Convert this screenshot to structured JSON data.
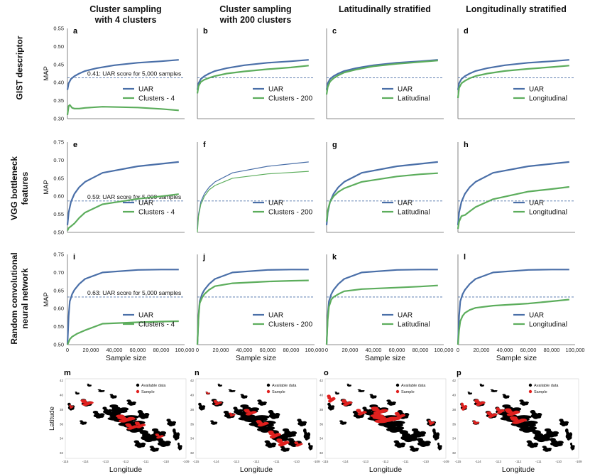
{
  "columns": [
    "Cluster sampling\nwith 4 clusters",
    "Cluster sampling\nwith 200 clusters",
    "Latitudinally stratified",
    "Longitudinally stratified"
  ],
  "rows": [
    "GIST descriptor",
    "VGG bottleneck\nfeatures",
    "Random convolutional\nneural network"
  ],
  "colors": {
    "uar": "#4a6fa8",
    "other": "#5cad5c",
    "baseline": "#4a6fa8",
    "available": "#000000",
    "sample": "#e0201e"
  },
  "y_axis_label": "MAP",
  "x_axis_label": "Sample size",
  "x_ticks": [
    "0",
    "20,000",
    "40,000",
    "60,000",
    "80,000",
    "100,000"
  ],
  "map": {
    "y_axis_label": "Latitude",
    "x_axis_label": "Longitude",
    "legend_available": "Available data",
    "legend_sample": "Sample",
    "lat_ticks": [
      "32",
      "34",
      "36",
      "38",
      "40",
      "42"
    ],
    "lon_ticks": [
      "-115",
      "-114",
      "-113",
      "-112",
      "-111",
      "-110",
      "-109"
    ],
    "panels": [
      "m",
      "n",
      "o",
      "p"
    ]
  },
  "chart_data": [
    {
      "type": "line",
      "panel": "a",
      "row": 0,
      "col": 0,
      "ylim": [
        0.3,
        0.55
      ],
      "yticks": [
        "0.30",
        "0.35",
        "0.40",
        "0.45",
        "0.50",
        "0.55"
      ],
      "baseline": 0.413,
      "annotation": "0.41: UAR score for 5,000 samples",
      "series": [
        {
          "name": "UAR",
          "x": [
            0,
            1000,
            3000,
            6000,
            10000,
            15000,
            25000,
            40000,
            60000,
            80000,
            95000
          ],
          "y": [
            0.38,
            0.398,
            0.41,
            0.418,
            0.425,
            0.432,
            0.44,
            0.448,
            0.455,
            0.459,
            0.463
          ]
        },
        {
          "name": "Clusters - 4",
          "x": [
            0,
            1000,
            2000,
            4000,
            6000,
            10000,
            15000,
            30000,
            60000,
            80000,
            95000
          ],
          "y": [
            0.31,
            0.335,
            0.338,
            0.33,
            0.328,
            0.328,
            0.33,
            0.333,
            0.331,
            0.327,
            0.323
          ]
        }
      ]
    },
    {
      "type": "line",
      "panel": "b",
      "row": 0,
      "col": 1,
      "ylim": [
        0.3,
        0.55
      ],
      "yticks": [
        "0.30",
        "0.35",
        "0.40",
        "0.45",
        "0.50",
        "0.55"
      ],
      "baseline": 0.413,
      "series": [
        {
          "name": "UAR",
          "x": [
            0,
            1000,
            3000,
            6000,
            10000,
            15000,
            25000,
            40000,
            60000,
            80000,
            95000
          ],
          "y": [
            0.38,
            0.398,
            0.41,
            0.418,
            0.425,
            0.432,
            0.44,
            0.448,
            0.455,
            0.459,
            0.463
          ]
        },
        {
          "name": "Clusters - 200",
          "x": [
            0,
            1000,
            3000,
            6000,
            10000,
            15000,
            25000,
            40000,
            60000,
            80000,
            95000
          ],
          "y": [
            0.37,
            0.39,
            0.402,
            0.408,
            0.413,
            0.418,
            0.425,
            0.431,
            0.437,
            0.442,
            0.447
          ]
        }
      ]
    },
    {
      "type": "line",
      "panel": "c",
      "row": 0,
      "col": 2,
      "ylim": [
        0.3,
        0.55
      ],
      "yticks": [
        "0.30",
        "0.35",
        "0.40",
        "0.45",
        "0.50",
        "0.55"
      ],
      "baseline": 0.413,
      "series": [
        {
          "name": "UAR",
          "x": [
            0,
            1000,
            3000,
            6000,
            10000,
            15000,
            25000,
            40000,
            60000,
            80000,
            95000
          ],
          "y": [
            0.38,
            0.398,
            0.41,
            0.418,
            0.425,
            0.432,
            0.44,
            0.448,
            0.455,
            0.459,
            0.463
          ]
        },
        {
          "name": "Latitudinal",
          "x": [
            0,
            1000,
            3000,
            6000,
            10000,
            15000,
            25000,
            40000,
            60000,
            80000,
            95000
          ],
          "y": [
            0.367,
            0.388,
            0.403,
            0.412,
            0.42,
            0.428,
            0.436,
            0.445,
            0.452,
            0.457,
            0.461
          ]
        }
      ]
    },
    {
      "type": "line",
      "panel": "d",
      "row": 0,
      "col": 3,
      "ylim": [
        0.3,
        0.55
      ],
      "yticks": [
        "0.30",
        "0.35",
        "0.40",
        "0.45",
        "0.50",
        "0.55"
      ],
      "baseline": 0.413,
      "series": [
        {
          "name": "UAR",
          "x": [
            0,
            1000,
            3000,
            6000,
            10000,
            15000,
            25000,
            40000,
            60000,
            80000,
            95000
          ],
          "y": [
            0.38,
            0.398,
            0.41,
            0.418,
            0.425,
            0.432,
            0.44,
            0.448,
            0.455,
            0.459,
            0.463
          ]
        },
        {
          "name": "Longitudinal",
          "x": [
            0,
            1000,
            3000,
            6000,
            10000,
            15000,
            25000,
            40000,
            60000,
            80000,
            95000
          ],
          "y": [
            0.357,
            0.385,
            0.398,
            0.405,
            0.412,
            0.418,
            0.425,
            0.432,
            0.438,
            0.443,
            0.447
          ]
        }
      ]
    },
    {
      "type": "line",
      "panel": "e",
      "row": 1,
      "col": 0,
      "ylim": [
        0.5,
        0.75
      ],
      "yticks": [
        "0.50",
        "0.55",
        "0.60",
        "0.65",
        "0.70",
        "0.75"
      ],
      "baseline": 0.587,
      "annotation": "0.59: UAR score for 5,000 samples",
      "series": [
        {
          "name": "UAR",
          "x": [
            0,
            1000,
            3000,
            6000,
            10000,
            15000,
            30000,
            60000,
            80000,
            95000
          ],
          "y": [
            0.52,
            0.555,
            0.585,
            0.607,
            0.625,
            0.64,
            0.665,
            0.683,
            0.69,
            0.695
          ]
        },
        {
          "name": "Clusters - 4",
          "x": [
            0,
            1000,
            3000,
            6000,
            10000,
            15000,
            30000,
            60000,
            80000,
            95000
          ],
          "y": [
            0.505,
            0.512,
            0.517,
            0.525,
            0.54,
            0.555,
            0.578,
            0.593,
            0.6,
            0.606
          ]
        }
      ]
    },
    {
      "type": "line",
      "panel": "f",
      "row": 1,
      "col": 1,
      "ylim": [
        0.5,
        0.75
      ],
      "yticks": [
        "0.50",
        "0.55",
        "0.60",
        "0.65",
        "0.70",
        "0.75"
      ],
      "baseline": 0.587,
      "thin": true,
      "series": [
        {
          "name": "UAR",
          "x": [
            0,
            1000,
            3000,
            6000,
            10000,
            15000,
            30000,
            60000,
            80000,
            95000
          ],
          "y": [
            0.51,
            0.55,
            0.585,
            0.607,
            0.625,
            0.64,
            0.665,
            0.683,
            0.69,
            0.695
          ]
        },
        {
          "name": "Clusters - 200",
          "x": [
            0,
            1000,
            3000,
            6000,
            10000,
            15000,
            30000,
            60000,
            80000,
            95000
          ],
          "y": [
            0.5,
            0.545,
            0.578,
            0.6,
            0.618,
            0.63,
            0.65,
            0.662,
            0.666,
            0.669
          ]
        }
      ]
    },
    {
      "type": "line",
      "panel": "g",
      "row": 1,
      "col": 2,
      "ylim": [
        0.5,
        0.75
      ],
      "yticks": [
        "0.50",
        "0.55",
        "0.60",
        "0.65",
        "0.70",
        "0.75"
      ],
      "baseline": 0.587,
      "series": [
        {
          "name": "UAR",
          "x": [
            0,
            1000,
            3000,
            6000,
            10000,
            15000,
            30000,
            60000,
            80000,
            95000
          ],
          "y": [
            0.52,
            0.555,
            0.585,
            0.607,
            0.625,
            0.64,
            0.665,
            0.683,
            0.69,
            0.695
          ]
        },
        {
          "name": "Latitudinal",
          "x": [
            0,
            1000,
            3000,
            6000,
            10000,
            15000,
            30000,
            60000,
            80000,
            95000
          ],
          "y": [
            0.53,
            0.56,
            0.585,
            0.6,
            0.612,
            0.622,
            0.64,
            0.655,
            0.661,
            0.664
          ]
        }
      ]
    },
    {
      "type": "line",
      "panel": "h",
      "row": 1,
      "col": 3,
      "ylim": [
        0.5,
        0.75
      ],
      "yticks": [
        "0.50",
        "0.55",
        "0.60",
        "0.65",
        "0.70",
        "0.75"
      ],
      "baseline": 0.587,
      "series": [
        {
          "name": "UAR",
          "x": [
            0,
            1000,
            3000,
            6000,
            10000,
            15000,
            30000,
            60000,
            80000,
            95000
          ],
          "y": [
            0.52,
            0.555,
            0.585,
            0.607,
            0.625,
            0.64,
            0.665,
            0.683,
            0.69,
            0.695
          ]
        },
        {
          "name": "Longitudinal",
          "x": [
            0,
            1000,
            3000,
            6000,
            10000,
            15000,
            30000,
            60000,
            80000,
            95000
          ],
          "y": [
            0.51,
            0.53,
            0.545,
            0.548,
            0.558,
            0.57,
            0.592,
            0.613,
            0.62,
            0.626
          ]
        }
      ]
    },
    {
      "type": "line",
      "panel": "i",
      "row": 2,
      "col": 0,
      "ylim": [
        0.5,
        0.75
      ],
      "yticks": [
        "0.50",
        "0.55",
        "0.60",
        "0.65",
        "0.70",
        "0.75"
      ],
      "baseline": 0.632,
      "annotation": "0.63: UAR score for 5,000 samples",
      "series": [
        {
          "name": "UAR",
          "x": [
            0,
            1000,
            2000,
            4000,
            6000,
            10000,
            15000,
            30000,
            60000,
            80000,
            95000
          ],
          "y": [
            0.5,
            0.58,
            0.62,
            0.64,
            0.652,
            0.668,
            0.682,
            0.7,
            0.707,
            0.708,
            0.708
          ]
        },
        {
          "name": "Clusters - 4",
          "x": [
            0,
            2000,
            4000,
            8000,
            15000,
            30000,
            60000,
            80000,
            95000
          ],
          "y": [
            0.5,
            0.515,
            0.522,
            0.53,
            0.54,
            0.558,
            0.562,
            0.564,
            0.565
          ]
        }
      ]
    },
    {
      "type": "line",
      "panel": "j",
      "row": 2,
      "col": 1,
      "ylim": [
        0.5,
        0.75
      ],
      "yticks": [
        "0.50",
        "0.55",
        "0.60",
        "0.65",
        "0.70",
        "0.75"
      ],
      "baseline": 0.632,
      "series": [
        {
          "name": "UAR",
          "x": [
            0,
            1000,
            2000,
            4000,
            6000,
            10000,
            15000,
            30000,
            60000,
            80000,
            95000
          ],
          "y": [
            0.5,
            0.58,
            0.62,
            0.64,
            0.652,
            0.668,
            0.682,
            0.7,
            0.707,
            0.708,
            0.708
          ]
        },
        {
          "name": "Clusters - 200",
          "x": [
            0,
            1000,
            2000,
            4000,
            6000,
            10000,
            15000,
            30000,
            60000,
            80000,
            95000
          ],
          "y": [
            0.5,
            0.575,
            0.615,
            0.63,
            0.64,
            0.652,
            0.662,
            0.67,
            0.675,
            0.677,
            0.678
          ]
        }
      ]
    },
    {
      "type": "line",
      "panel": "k",
      "row": 2,
      "col": 2,
      "ylim": [
        0.5,
        0.75
      ],
      "yticks": [
        "0.50",
        "0.55",
        "0.60",
        "0.65",
        "0.70",
        "0.75"
      ],
      "baseline": 0.632,
      "series": [
        {
          "name": "UAR",
          "x": [
            0,
            1000,
            2000,
            4000,
            6000,
            10000,
            15000,
            30000,
            60000,
            80000,
            95000
          ],
          "y": [
            0.5,
            0.58,
            0.62,
            0.64,
            0.652,
            0.668,
            0.682,
            0.7,
            0.707,
            0.708,
            0.708
          ]
        },
        {
          "name": "Latitudinal",
          "x": [
            0,
            1000,
            2000,
            4000,
            6000,
            10000,
            15000,
            30000,
            60000,
            80000,
            95000
          ],
          "y": [
            0.5,
            0.57,
            0.605,
            0.625,
            0.632,
            0.64,
            0.648,
            0.654,
            0.658,
            0.661,
            0.664
          ]
        }
      ]
    },
    {
      "type": "line",
      "panel": "l",
      "row": 2,
      "col": 3,
      "ylim": [
        0.5,
        0.75
      ],
      "yticks": [
        "0.50",
        "0.55",
        "0.60",
        "0.65",
        "0.70",
        "0.75"
      ],
      "baseline": 0.632,
      "series": [
        {
          "name": "UAR",
          "x": [
            0,
            1000,
            2000,
            4000,
            6000,
            10000,
            15000,
            30000,
            60000,
            80000,
            95000
          ],
          "y": [
            0.5,
            0.58,
            0.62,
            0.64,
            0.652,
            0.668,
            0.682,
            0.7,
            0.707,
            0.708,
            0.708
          ]
        },
        {
          "name": "Longitudinal",
          "x": [
            0,
            1000,
            2000,
            4000,
            6000,
            10000,
            15000,
            30000,
            60000,
            80000,
            95000
          ],
          "y": [
            0.5,
            0.54,
            0.565,
            0.58,
            0.588,
            0.596,
            0.602,
            0.608,
            0.614,
            0.62,
            0.625
          ]
        }
      ]
    }
  ]
}
